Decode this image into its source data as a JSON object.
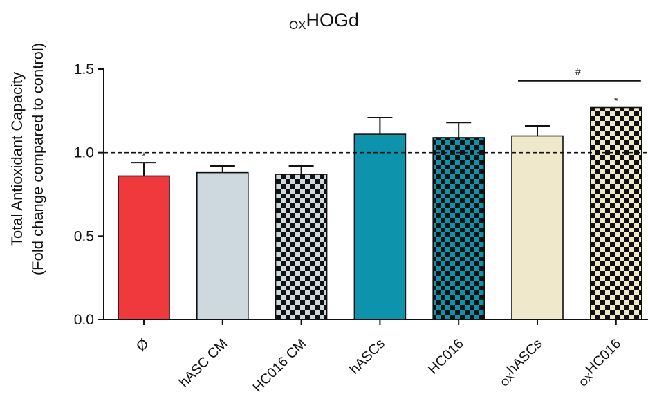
{
  "chart_data": {
    "type": "bar",
    "title": "HOGd",
    "title_prefix": "OX",
    "ylabel_line1": "Total Antioxidant Capacity",
    "ylabel_line2": "(Fold change compared to control)",
    "ylim": [
      0,
      1.5
    ],
    "yticks": [
      "0.0",
      "0.5",
      "1.0",
      "1.5"
    ],
    "reference_line": 1.0,
    "categories": [
      {
        "prefix": "",
        "label": "Ø",
        "value": 0.86,
        "error": 0.08,
        "color": "#f0393c",
        "pattern": false,
        "sig": "*"
      },
      {
        "prefix": "",
        "label": "hASC CM",
        "value": 0.88,
        "error": 0.04,
        "color": "#cdd8df",
        "pattern": false,
        "sig": ""
      },
      {
        "prefix": "",
        "label": "HC016 CM",
        "value": 0.87,
        "error": 0.05,
        "color": "#cdd8df",
        "pattern": true,
        "sig": ""
      },
      {
        "prefix": "",
        "label": "hASCs",
        "value": 1.11,
        "error": 0.1,
        "color": "#0e93ad",
        "pattern": false,
        "sig": ""
      },
      {
        "prefix": "",
        "label": "HC016",
        "value": 1.09,
        "error": 0.09,
        "color": "#0e93ad",
        "pattern": true,
        "sig": ""
      },
      {
        "prefix": "OX",
        "label": "hASCs",
        "value": 1.1,
        "error": 0.06,
        "color": "#efe8cb",
        "pattern": false,
        "sig": ""
      },
      {
        "prefix": "OX",
        "label": "HC016",
        "value": 1.27,
        "error": 0.0,
        "color": "#efe8cb",
        "pattern": true,
        "sig": "*"
      }
    ],
    "bracket": {
      "from": 5,
      "to": 6,
      "symbol": "#",
      "level": 1.43
    }
  }
}
